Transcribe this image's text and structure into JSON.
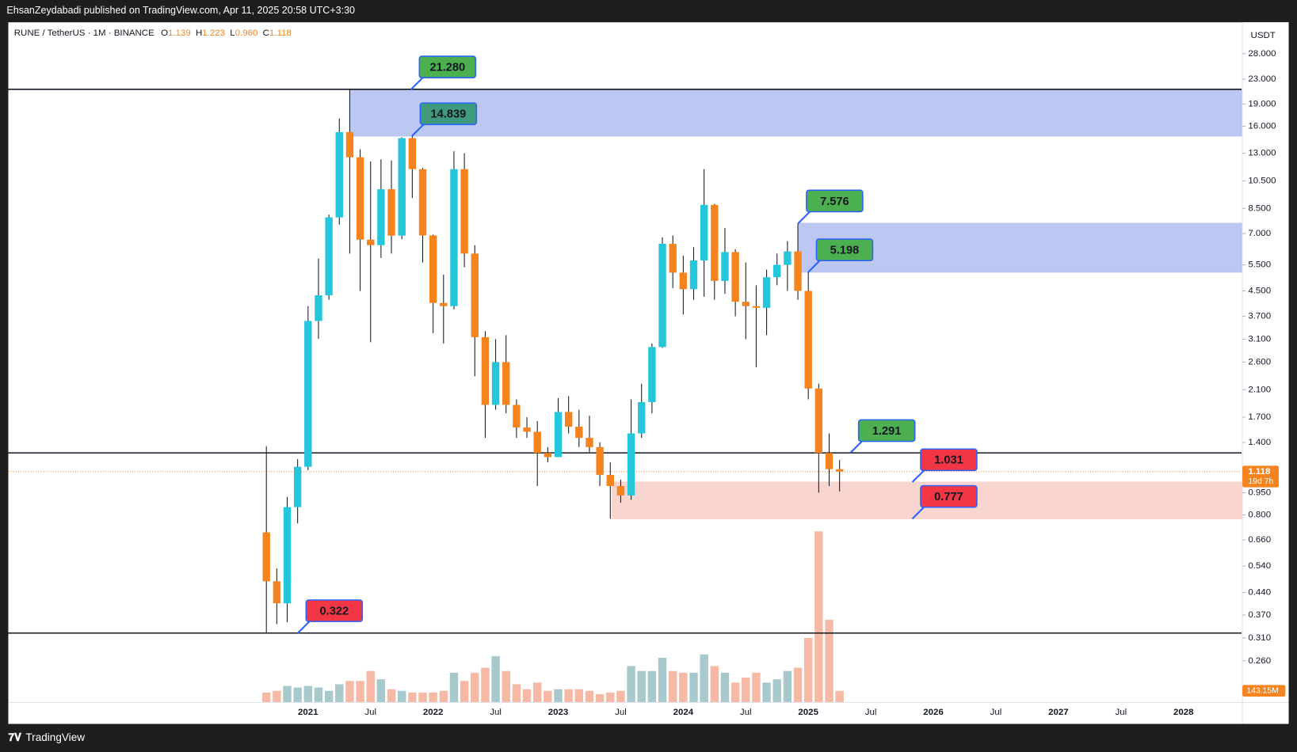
{
  "chart_data": {
    "type": "candlestick",
    "header": "EhsanZeydabadi published on TradingView.com, Apr 11, 2025 20:58 UTC+3:30",
    "symbol": "RUNE / TetherUS · 1M · BINANCE",
    "ohlc_legend": [
      {
        "key": "O",
        "value": "1.139"
      },
      {
        "key": "H",
        "value": "1.223"
      },
      {
        "key": "L",
        "value": "0.960"
      },
      {
        "key": "C",
        "value": "1.118"
      }
    ],
    "unit": "USDT",
    "last_price": 1.118,
    "countdown": "19d 7h",
    "volume_label": "143.15M",
    "footer": "TradingView",
    "log_scale": true,
    "up_color": "#26c6da",
    "down_color": "#f5841f",
    "volume_up_color": "#a8c9cb",
    "volume_down_color": "#f6b9a6",
    "x": [
      "2020-09",
      "2020-10",
      "2020-11",
      "2020-12",
      "2021-01",
      "2021-02",
      "2021-03",
      "2021-04",
      "2021-05",
      "2021-06",
      "2021-07",
      "2021-08",
      "2021-09",
      "2021-10",
      "2021-11",
      "2021-12",
      "2022-01",
      "2022-02",
      "2022-03",
      "2022-04",
      "2022-05",
      "2022-06",
      "2022-07",
      "2022-08",
      "2022-09",
      "2022-10",
      "2022-11",
      "2022-12",
      "2023-01",
      "2023-02",
      "2023-03",
      "2023-04",
      "2023-05",
      "2023-06",
      "2023-07",
      "2023-08",
      "2023-09",
      "2023-10",
      "2023-11",
      "2023-12",
      "2024-01",
      "2024-02",
      "2024-03",
      "2024-04",
      "2024-05",
      "2024-06",
      "2024-07",
      "2024-08",
      "2024-09",
      "2024-10",
      "2024-11",
      "2024-12",
      "2025-01",
      "2025-02",
      "2025-03",
      "2025-04"
    ],
    "open": [
      0.7,
      0.48,
      0.405,
      0.85,
      1.16,
      3.57,
      4.35,
      7.93,
      15.3,
      12.6,
      6.68,
      6.4,
      9.85,
      6.89,
      14.6,
      11.5,
      6.9,
      4.1,
      4.0,
      11.5,
      6.0,
      3.15,
      1.87,
      2.6,
      1.87,
      1.57,
      1.52,
      1.29,
      1.25,
      1.77,
      1.58,
      1.45,
      1.35,
      1.09,
      1.0,
      0.93,
      1.5,
      1.91,
      2.92,
      6.47,
      5.18,
      4.56,
      5.69,
      8.73,
      4.86,
      6.07,
      4.14,
      4.0,
      3.95,
      5.0,
      5.5,
      6.1,
      4.5,
      2.12,
      1.29,
      1.139
    ],
    "high": [
      1.36,
      0.53,
      0.92,
      1.23,
      4.0,
      5.77,
      8.1,
      17.0,
      21.28,
      13.4,
      12.2,
      12.4,
      12.3,
      14.7,
      14.839,
      11.6,
      6.95,
      5.1,
      13.2,
      13.0,
      6.4,
      3.3,
      3.1,
      3.2,
      1.95,
      1.7,
      1.65,
      1.35,
      1.97,
      2.0,
      1.8,
      1.72,
      1.4,
      1.2,
      1.05,
      1.95,
      2.2,
      3.0,
      6.8,
      6.9,
      5.9,
      6.3,
      11.5,
      8.8,
      7.3,
      6.2,
      5.6,
      4.7,
      5.3,
      6.0,
      6.6,
      7.576,
      5.198,
      2.2,
      1.5,
      1.223
    ],
    "low": [
      0.322,
      0.345,
      0.35,
      0.75,
      1.13,
      3.11,
      4.2,
      7.5,
      6.0,
      4.5,
      3.03,
      5.8,
      6.0,
      6.7,
      9.2,
      5.6,
      3.25,
      3.0,
      3.9,
      5.4,
      2.33,
      1.45,
      1.8,
      1.75,
      1.45,
      1.45,
      1.0,
      1.2,
      1.25,
      1.5,
      1.35,
      1.3,
      1.0,
      0.777,
      0.88,
      0.9,
      1.45,
      1.75,
      2.9,
      4.6,
      3.75,
      4.2,
      4.3,
      4.2,
      4.4,
      3.7,
      3.1,
      2.5,
      3.2,
      4.7,
      4.5,
      4.2,
      1.95,
      0.95,
      1.0,
      0.96
    ],
    "close": [
      0.48,
      0.405,
      0.85,
      1.16,
      3.57,
      4.35,
      7.93,
      15.3,
      12.6,
      6.68,
      6.4,
      9.85,
      6.89,
      14.6,
      11.5,
      6.9,
      4.1,
      4.0,
      11.5,
      6.0,
      3.15,
      1.87,
      2.6,
      1.87,
      1.57,
      1.52,
      1.29,
      1.25,
      1.77,
      1.58,
      1.45,
      1.35,
      1.09,
      1.0,
      0.93,
      1.5,
      1.91,
      2.92,
      6.47,
      5.18,
      4.56,
      5.69,
      8.73,
      4.86,
      6.07,
      4.14,
      4.0,
      3.95,
      5.0,
      5.5,
      6.1,
      4.5,
      2.12,
      1.29,
      1.139,
      1.118
    ],
    "volume": [
      122,
      143,
      204,
      184,
      204,
      184,
      143,
      224,
      265,
      265,
      388,
      286,
      163,
      143,
      122,
      122,
      122,
      143,
      367,
      265,
      367,
      428,
      571,
      388,
      224,
      163,
      245,
      143,
      163,
      163,
      163,
      143,
      102,
      122,
      143,
      449,
      388,
      388,
      551,
      388,
      367,
      367,
      592,
      449,
      367,
      245,
      306,
      367,
      245,
      286,
      388,
      428,
      796,
      2111,
      1020,
      143.15
    ],
    "ylim": [
      0.1887,
      35.66
    ],
    "yticks": [
      {
        "value": 28,
        "label": "28.000"
      },
      {
        "value": 23,
        "label": "23.000"
      },
      {
        "value": 19,
        "label": "19.000"
      },
      {
        "value": 16,
        "label": "16.000"
      },
      {
        "value": 13,
        "label": "13.000"
      },
      {
        "value": 10.5,
        "label": "10.500"
      },
      {
        "value": 8.5,
        "label": "8.500"
      },
      {
        "value": 7,
        "label": "7.000"
      },
      {
        "value": 5.5,
        "label": "5.500"
      },
      {
        "value": 4.5,
        "label": "4.500"
      },
      {
        "value": 3.7,
        "label": "3.700"
      },
      {
        "value": 3.1,
        "label": "3.100"
      },
      {
        "value": 2.6,
        "label": "2.600"
      },
      {
        "value": 2.1,
        "label": "2.100"
      },
      {
        "value": 1.7,
        "label": "1.700"
      },
      {
        "value": 1.4,
        "label": "1.400"
      },
      {
        "value": 0.95,
        "label": "0.950"
      },
      {
        "value": 0.8,
        "label": "0.800"
      },
      {
        "value": 0.66,
        "label": "0.660"
      },
      {
        "value": 0.54,
        "label": "0.540"
      },
      {
        "value": 0.44,
        "label": "0.440"
      },
      {
        "value": 0.37,
        "label": "0.370"
      },
      {
        "value": 0.31,
        "label": "0.310"
      },
      {
        "value": 0.26,
        "label": "0.260"
      }
    ],
    "xticks": [
      {
        "value": "2021-01",
        "label": "2021"
      },
      {
        "value": "2021-07",
        "label": "Jul"
      },
      {
        "value": "2022-01",
        "label": "2022"
      },
      {
        "value": "2022-07",
        "label": "Jul"
      },
      {
        "value": "2023-01",
        "label": "2023"
      },
      {
        "value": "2023-07",
        "label": "Jul"
      },
      {
        "value": "2024-01",
        "label": "2024"
      },
      {
        "value": "2024-07",
        "label": "Jul"
      },
      {
        "value": "2025-01",
        "label": "2025"
      },
      {
        "value": "2025-07",
        "label": "Jul"
      },
      {
        "value": "2026-01",
        "label": "2026"
      },
      {
        "value": "2026-07",
        "label": "Jul"
      },
      {
        "value": "2027-01",
        "label": "2027"
      },
      {
        "value": "2027-07",
        "label": "Jul"
      },
      {
        "value": "2028-01",
        "label": "2028"
      }
    ],
    "levels": [
      21.28,
      1.291,
      0.322
    ],
    "zones": [
      {
        "range": [
          14.839,
          21.28
        ],
        "color": "#b8c5f1"
      },
      {
        "range": [
          5.198,
          7.576
        ],
        "color": "#b8c5f1"
      },
      {
        "range": [
          0.777,
          1.031
        ],
        "color": "#f9d3cd"
      }
    ],
    "annotations": [
      {
        "value": 21.28,
        "label": "21.280",
        "color": "#4caf50"
      },
      {
        "value": 14.839,
        "label": "14.839",
        "color": "#3e9a7a"
      },
      {
        "value": 7.576,
        "label": "7.576",
        "color": "#4caf50"
      },
      {
        "value": 5.198,
        "label": "5.198",
        "color": "#4caf50"
      },
      {
        "value": 1.291,
        "label": "1.291",
        "color": "#4caf50"
      },
      {
        "value": 1.031,
        "label": "1.031",
        "color": "#f23645"
      },
      {
        "value": 0.777,
        "label": "0.777",
        "color": "#f23645"
      },
      {
        "value": 0.322,
        "label": "0.322",
        "color": "#f23645"
      }
    ]
  }
}
